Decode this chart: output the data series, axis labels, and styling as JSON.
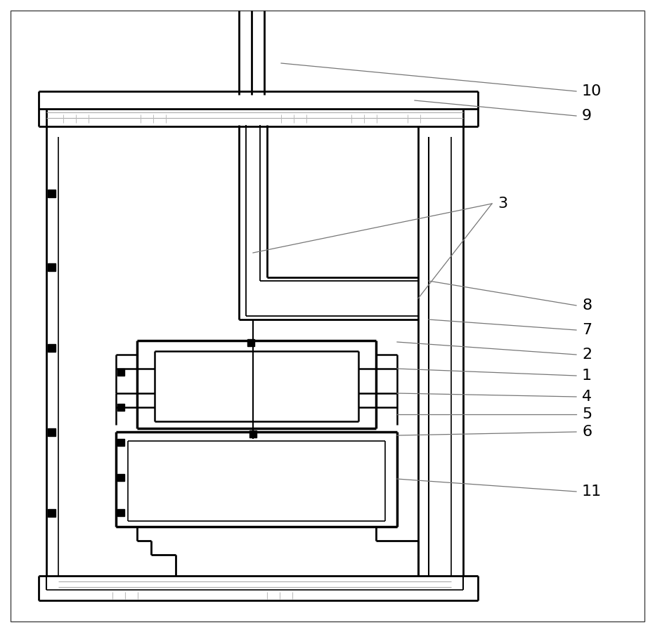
{
  "bg_color": "#ffffff",
  "lc": "#000000",
  "gc": "#888888",
  "fs": 16,
  "fig_w": 9.32,
  "fig_h": 9.0,
  "dpi": 100
}
